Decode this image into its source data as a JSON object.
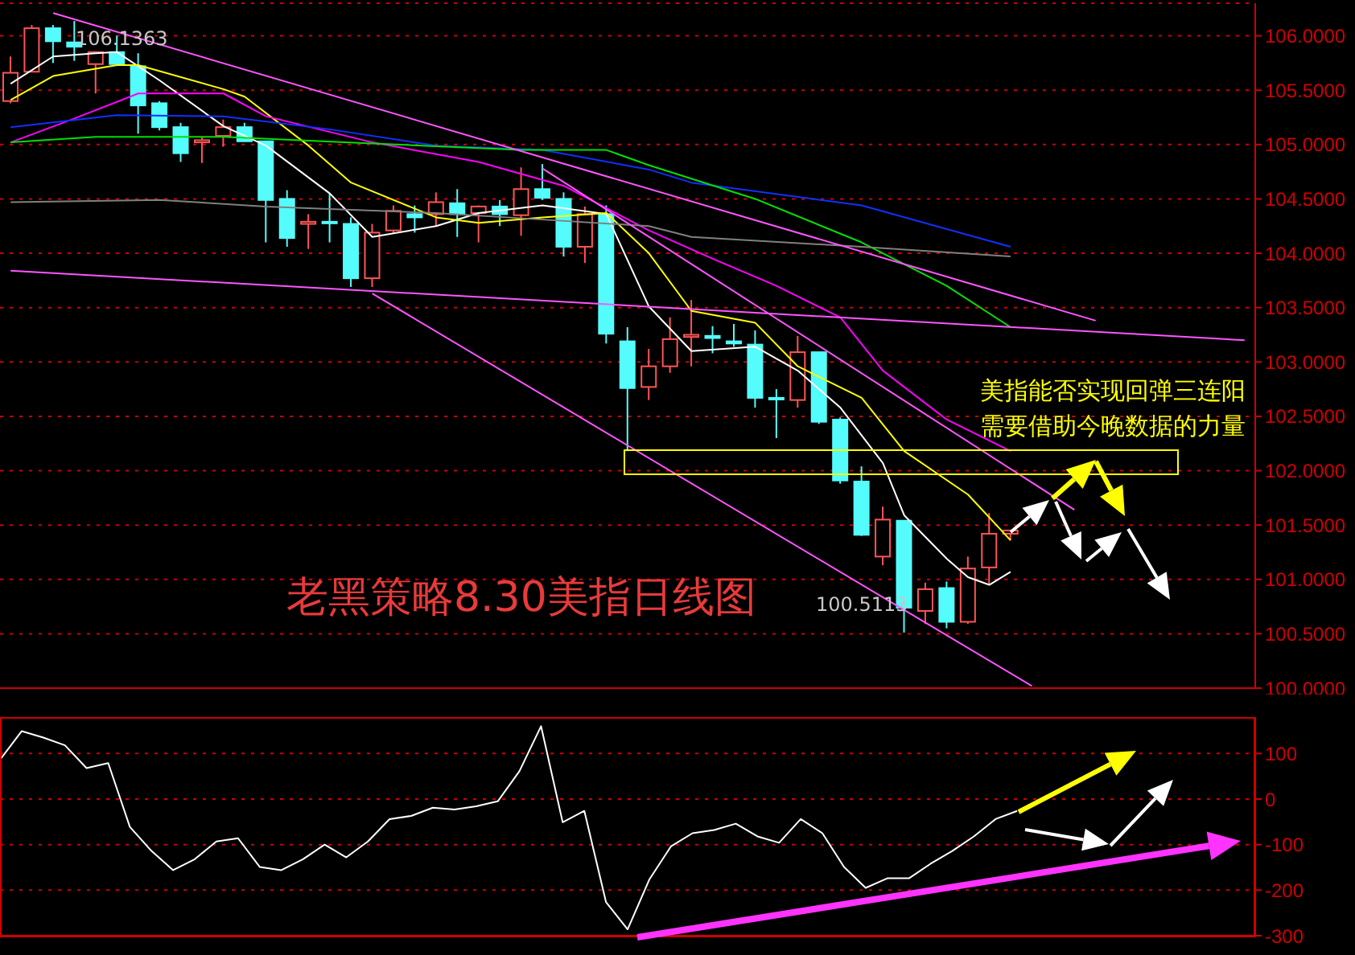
{
  "chart_data": [
    {
      "type": "candlestick",
      "title": "老黑策略8.30美指日线图",
      "categories": [
        null,
        null,
        null,
        null,
        null,
        null,
        null,
        null,
        null,
        null,
        null,
        null,
        null,
        null,
        null,
        null,
        null,
        null,
        null,
        null,
        null,
        null,
        null,
        null,
        null,
        null,
        null,
        null,
        null,
        null,
        null,
        null,
        null,
        null,
        null,
        null,
        null,
        null,
        null,
        null,
        null,
        null,
        null,
        null,
        null,
        null,
        null,
        null,
        null,
        null,
        null,
        null,
        null,
        null,
        null,
        null,
        null,
        null,
        null
      ],
      "ohlc": [
        [
          105.4,
          105.81,
          105.38,
          105.66
        ],
        [
          105.67,
          106.1,
          105.67,
          106.07
        ],
        [
          106.07,
          106.1,
          105.75,
          105.95
        ],
        [
          105.94,
          106.1363,
          105.77,
          105.9
        ],
        [
          105.74,
          105.85,
          105.47,
          105.85
        ],
        [
          105.85,
          106.0,
          105.74,
          105.74
        ],
        [
          105.72,
          105.84,
          105.1,
          105.36
        ],
        [
          105.38,
          105.4,
          105.13,
          105.16
        ],
        [
          105.16,
          105.2,
          104.84,
          104.92
        ],
        [
          105.02,
          105.07,
          104.83,
          105.04
        ],
        [
          105.08,
          105.23,
          104.98,
          105.16
        ],
        [
          105.16,
          105.2,
          105.03,
          105.03
        ],
        [
          105.03,
          105.03,
          104.1,
          104.49
        ],
        [
          104.5,
          104.58,
          104.06,
          104.14
        ],
        [
          104.27,
          104.36,
          104.04,
          104.29
        ],
        [
          104.29,
          104.55,
          104.1,
          104.28
        ],
        [
          104.27,
          104.33,
          103.69,
          103.77
        ],
        [
          103.77,
          104.27,
          103.69,
          104.19
        ],
        [
          104.21,
          104.44,
          104.18,
          104.39
        ],
        [
          104.36,
          104.44,
          104.19,
          104.33
        ],
        [
          104.36,
          104.56,
          104.25,
          104.47
        ],
        [
          104.46,
          104.59,
          104.15,
          104.36
        ],
        [
          104.37,
          104.44,
          104.1,
          104.43
        ],
        [
          104.43,
          104.49,
          104.25,
          104.36
        ],
        [
          104.35,
          104.79,
          104.16,
          104.59
        ],
        [
          104.59,
          104.82,
          104.49,
          104.51
        ],
        [
          104.5,
          104.56,
          103.97,
          104.06
        ],
        [
          104.06,
          104.43,
          103.91,
          104.36
        ],
        [
          104.36,
          104.44,
          103.17,
          103.26
        ],
        [
          103.19,
          103.32,
          102.18,
          102.76
        ],
        [
          102.77,
          103.12,
          102.65,
          102.96
        ],
        [
          102.96,
          103.41,
          102.9,
          103.21
        ],
        [
          103.23,
          103.57,
          102.96,
          103.25
        ],
        [
          103.24,
          103.33,
          103.08,
          103.22
        ],
        [
          103.19,
          103.35,
          103.14,
          103.17
        ],
        [
          103.16,
          103.29,
          102.58,
          102.67
        ],
        [
          102.67,
          102.75,
          102.3,
          102.66
        ],
        [
          102.65,
          103.24,
          102.58,
          103.09
        ],
        [
          103.09,
          103.09,
          102.43,
          102.45
        ],
        [
          102.47,
          102.49,
          101.88,
          101.91
        ],
        [
          101.9,
          102.04,
          101.4,
          101.41
        ],
        [
          101.21,
          101.67,
          101.13,
          101.55
        ],
        [
          101.54,
          101.54,
          100.5113,
          100.74
        ],
        [
          100.71,
          100.97,
          100.59,
          100.91
        ],
        [
          100.92,
          100.98,
          100.55,
          100.61
        ],
        [
          100.61,
          101.21,
          100.59,
          101.1
        ],
        [
          101.11,
          101.61,
          100.95,
          101.42
        ],
        [
          101.42,
          101.45,
          101.36,
          101.45
        ],
        null,
        null,
        null,
        null,
        null,
        null,
        null,
        null,
        null,
        null,
        null
      ],
      "series": [
        {
          "type": "line",
          "color": "#ffffff",
          "values": [
            105.56,
            null,
            105.81,
            null,
            105.84,
            105.85,
            null,
            105.59,
            null,
            null,
            105.17,
            null,
            104.99,
            null,
            null,
            104.55,
            null,
            104.15,
            null,
            null,
            104.25,
            null,
            104.37,
            null,
            null,
            104.44,
            null,
            null,
            104.36,
            null,
            103.51,
            null,
            103.1,
            null,
            null,
            103.14,
            null,
            102.92,
            null,
            102.58,
            null,
            102.07,
            101.59,
            null,
            101.19,
            101.02,
            100.95,
            101.07,
            null,
            null,
            null,
            null,
            null,
            null,
            null,
            null,
            null,
            null,
            null
          ]
        },
        {
          "type": "line",
          "color": "#ffff00",
          "values": [
            105.41,
            null,
            105.63,
            null,
            null,
            105.73,
            105.73,
            null,
            null,
            null,
            105.51,
            105.44,
            null,
            null,
            104.99,
            null,
            104.65,
            null,
            null,
            null,
            104.33,
            null,
            104.28,
            null,
            null,
            104.33,
            null,
            null,
            104.37,
            null,
            104.0,
            null,
            103.47,
            null,
            null,
            103.36,
            null,
            102.96,
            null,
            null,
            102.67,
            null,
            102.18,
            null,
            null,
            101.78,
            null,
            101.36,
            null,
            null,
            null,
            null,
            null,
            null,
            null,
            null,
            null,
            null,
            null
          ]
        },
        {
          "type": "line",
          "color": "#ff00ff",
          "values": [
            105.02,
            null,
            null,
            105.24,
            null,
            null,
            105.47,
            null,
            null,
            null,
            105.47,
            null,
            105.26,
            null,
            null,
            null,
            null,
            105.02,
            null,
            null,
            null,
            null,
            104.84,
            null,
            null,
            null,
            104.62,
            null,
            null,
            null,
            104.21,
            null,
            null,
            103.95,
            null,
            null,
            103.7,
            null,
            null,
            103.41,
            null,
            102.92,
            null,
            null,
            102.47,
            null,
            null,
            102.18,
            null,
            null,
            null,
            null,
            null,
            null,
            null,
            null,
            null,
            null,
            null
          ]
        },
        {
          "type": "line",
          "color": "#1030ff",
          "values": [
            105.16,
            null,
            null,
            null,
            null,
            105.27,
            null,
            null,
            null,
            null,
            105.26,
            null,
            null,
            null,
            null,
            105.14,
            null,
            null,
            null,
            null,
            104.99,
            null,
            null,
            null,
            null,
            104.95,
            null,
            null,
            null,
            null,
            104.77,
            null,
            104.65,
            null,
            null,
            null,
            null,
            null,
            null,
            null,
            104.44,
            null,
            null,
            null,
            null,
            null,
            null,
            104.06,
            null,
            null,
            null,
            null,
            null,
            null,
            null,
            null,
            null,
            null,
            null
          ]
        },
        {
          "type": "line",
          "color": "#00e000",
          "values": [
            105.02,
            null,
            null,
            null,
            105.07,
            null,
            null,
            null,
            null,
            null,
            105.07,
            null,
            null,
            null,
            null,
            null,
            null,
            105.01,
            null,
            null,
            null,
            null,
            null,
            null,
            104.95,
            null,
            null,
            null,
            104.95,
            null,
            104.81,
            null,
            null,
            null,
            null,
            104.5,
            null,
            null,
            null,
            null,
            104.1,
            null,
            null,
            null,
            103.7,
            null,
            null,
            103.32,
            null,
            null,
            null,
            null,
            null,
            null,
            null,
            null,
            null,
            null,
            null
          ]
        },
        {
          "type": "line",
          "color": "#808080",
          "values": [
            104.47,
            null,
            null,
            null,
            null,
            null,
            null,
            104.49,
            null,
            null,
            null,
            null,
            104.43,
            null,
            null,
            null,
            null,
            null,
            null,
            null,
            104.37,
            null,
            null,
            null,
            null,
            104.31,
            null,
            null,
            null,
            null,
            104.25,
            null,
            104.15,
            null,
            null,
            null,
            null,
            null,
            null,
            null,
            104.06,
            null,
            null,
            null,
            null,
            null,
            null,
            103.97,
            null,
            null,
            null,
            null,
            null,
            null,
            null,
            null,
            null,
            null,
            null
          ]
        },
        {
          "type": "line",
          "color": "#ff55ff",
          "values": [
            null,
            null,
            106.21,
            null,
            null,
            null,
            null,
            null,
            null,
            null,
            null,
            null,
            null,
            null,
            null,
            null,
            null,
            null,
            null,
            null,
            null,
            null,
            null,
            null,
            null,
            null,
            null,
            null,
            null,
            null,
            null,
            null,
            null,
            null,
            null,
            null,
            null,
            null,
            null,
            null,
            null,
            null,
            null,
            null,
            null,
            null,
            null,
            null,
            null,
            null,
            null,
            103.38,
            null,
            null,
            null,
            null,
            null,
            null,
            null
          ]
        },
        {
          "type": "line",
          "color": "#ff55ff",
          "values": [
            103.84,
            null,
            null,
            null,
            null,
            null,
            null,
            null,
            null,
            null,
            null,
            null,
            null,
            null,
            null,
            null,
            null,
            null,
            null,
            null,
            null,
            null,
            null,
            null,
            null,
            null,
            null,
            null,
            null,
            null,
            null,
            null,
            null,
            null,
            null,
            null,
            null,
            null,
            null,
            null,
            null,
            null,
            null,
            null,
            null,
            null,
            null,
            null,
            null,
            null,
            null,
            null,
            null,
            null,
            null,
            null,
            null,
            null,
            103.2
          ]
        },
        {
          "type": "line",
          "color": "#ff55ff",
          "values": [
            null,
            null,
            null,
            null,
            null,
            null,
            null,
            null,
            null,
            null,
            null,
            null,
            null,
            null,
            null,
            null,
            null,
            103.63,
            null,
            null,
            null,
            null,
            null,
            null,
            null,
            null,
            null,
            null,
            null,
            null,
            null,
            null,
            null,
            null,
            null,
            null,
            null,
            null,
            null,
            null,
            null,
            null,
            null,
            null,
            null,
            null,
            null,
            null,
            100.02,
            null,
            null,
            null,
            null,
            null,
            null,
            null,
            null,
            null,
            null
          ]
        },
        {
          "type": "line",
          "color": "#ff55ff",
          "values": [
            null,
            null,
            null,
            null,
            null,
            null,
            null,
            null,
            null,
            null,
            null,
            null,
            null,
            null,
            null,
            null,
            null,
            null,
            null,
            null,
            null,
            null,
            null,
            null,
            null,
            104.78,
            null,
            null,
            null,
            null,
            null,
            null,
            null,
            null,
            null,
            null,
            null,
            null,
            null,
            null,
            null,
            null,
            null,
            null,
            null,
            null,
            null,
            null,
            null,
            null,
            101.64,
            null,
            null,
            null,
            null,
            null,
            null,
            null,
            null
          ]
        }
      ],
      "ylim": [
        100.0,
        106.3
      ],
      "yticks": [
        {
          "value": 100.0,
          "label": "100.0000"
        },
        {
          "value": 100.5,
          "label": "100.5000"
        },
        {
          "value": 101.0,
          "label": "101.0000"
        },
        {
          "value": 101.5,
          "label": "101.5000"
        },
        {
          "value": 102.0,
          "label": "102.0000"
        },
        {
          "value": 102.5,
          "label": "102.5000"
        },
        {
          "value": 103.0,
          "label": "103.0000"
        },
        {
          "value": 103.5,
          "label": "103.5000"
        },
        {
          "value": 104.0,
          "label": "104.0000"
        },
        {
          "value": 104.5,
          "label": "104.5000"
        },
        {
          "value": 105.0,
          "label": "105.0000"
        },
        {
          "value": 105.5,
          "label": "105.5000"
        },
        {
          "value": 106.0,
          "label": "106.0000"
        }
      ],
      "grid": "y",
      "tick_labels": "y",
      "annotations": [
        "106.1363",
        "100.5113",
        "美指能否实现回弹三连阳",
        "需要借助今晚数据的力量"
      ]
    },
    {
      "type": "line",
      "categories": [
        null,
        null,
        null,
        null,
        null,
        null,
        null,
        null,
        null,
        null,
        null,
        null,
        null,
        null,
        null,
        null,
        null,
        null,
        null,
        null,
        null,
        null,
        null,
        null,
        null,
        null,
        null,
        null,
        null,
        null,
        null,
        null,
        null,
        null,
        null,
        null,
        null,
        null,
        null,
        null,
        null,
        null,
        null,
        null,
        null,
        null,
        null,
        null,
        null,
        null,
        null,
        null,
        null,
        null,
        null,
        null,
        null,
        null,
        null
      ],
      "color": "#ffffff",
      "values": [
        86,
        149,
        135,
        118,
        68,
        79,
        -61,
        -114,
        -156,
        -132,
        -93,
        -86,
        -149,
        -156,
        -132,
        -100,
        -128,
        -93,
        -44,
        -37,
        -19,
        -23,
        -16,
        -5,
        61,
        160,
        -51,
        -26,
        -226,
        -286,
        -177,
        -104,
        -75,
        -68,
        -54,
        -82,
        -96,
        -44,
        -75,
        -149,
        -195,
        -174,
        -174,
        -142,
        -114,
        -82,
        -44,
        -26,
        null,
        null,
        null,
        null,
        null,
        null,
        null,
        null,
        null,
        null,
        null
      ],
      "ylim": [
        -300,
        180
      ],
      "yticks": [
        100,
        0,
        -100,
        -200,
        -300
      ],
      "grid": "y",
      "tick_labels": "y"
    }
  ]
}
